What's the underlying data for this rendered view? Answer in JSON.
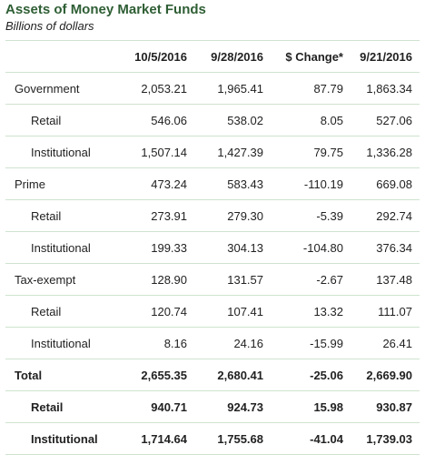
{
  "title": "Assets of Money Market Funds",
  "subtitle": "Billions of dollars",
  "columns": [
    "",
    "10/5/2016",
    "9/28/2016",
    "$ Change*",
    "9/21/2016"
  ],
  "rows": [
    {
      "label": "Government",
      "values": [
        "2,053.21",
        "1,965.41",
        "87.79",
        "1,863.34"
      ]
    },
    {
      "label": "Retail",
      "values": [
        "546.06",
        "538.02",
        "8.05",
        "527.06"
      ]
    },
    {
      "label": "Institutional",
      "values": [
        "1,507.14",
        "1,427.39",
        "79.75",
        "1,336.28"
      ]
    },
    {
      "label": "Prime",
      "values": [
        "473.24",
        "583.43",
        "-110.19",
        "669.08"
      ]
    },
    {
      "label": "Retail",
      "values": [
        "273.91",
        "279.30",
        "-5.39",
        "292.74"
      ]
    },
    {
      "label": "Institutional",
      "values": [
        "199.33",
        "304.13",
        "-104.80",
        "376.34"
      ]
    },
    {
      "label": "Tax-exempt",
      "values": [
        "128.90",
        "131.57",
        "-2.67",
        "137.48"
      ]
    },
    {
      "label": "Retail",
      "values": [
        "120.74",
        "107.41",
        "13.32",
        "111.07"
      ]
    },
    {
      "label": "Institutional",
      "values": [
        "8.16",
        "24.16",
        "-15.99",
        "26.41"
      ]
    },
    {
      "label": "Total",
      "values": [
        "2,655.35",
        "2,680.41",
        "-25.06",
        "2,669.90"
      ]
    },
    {
      "label": "Retail",
      "values": [
        "940.71",
        "924.73",
        "15.98",
        "930.87"
      ]
    },
    {
      "label": "Institutional",
      "values": [
        "1,714.64",
        "1,755.68",
        "-41.04",
        "1,739.03"
      ]
    }
  ]
}
